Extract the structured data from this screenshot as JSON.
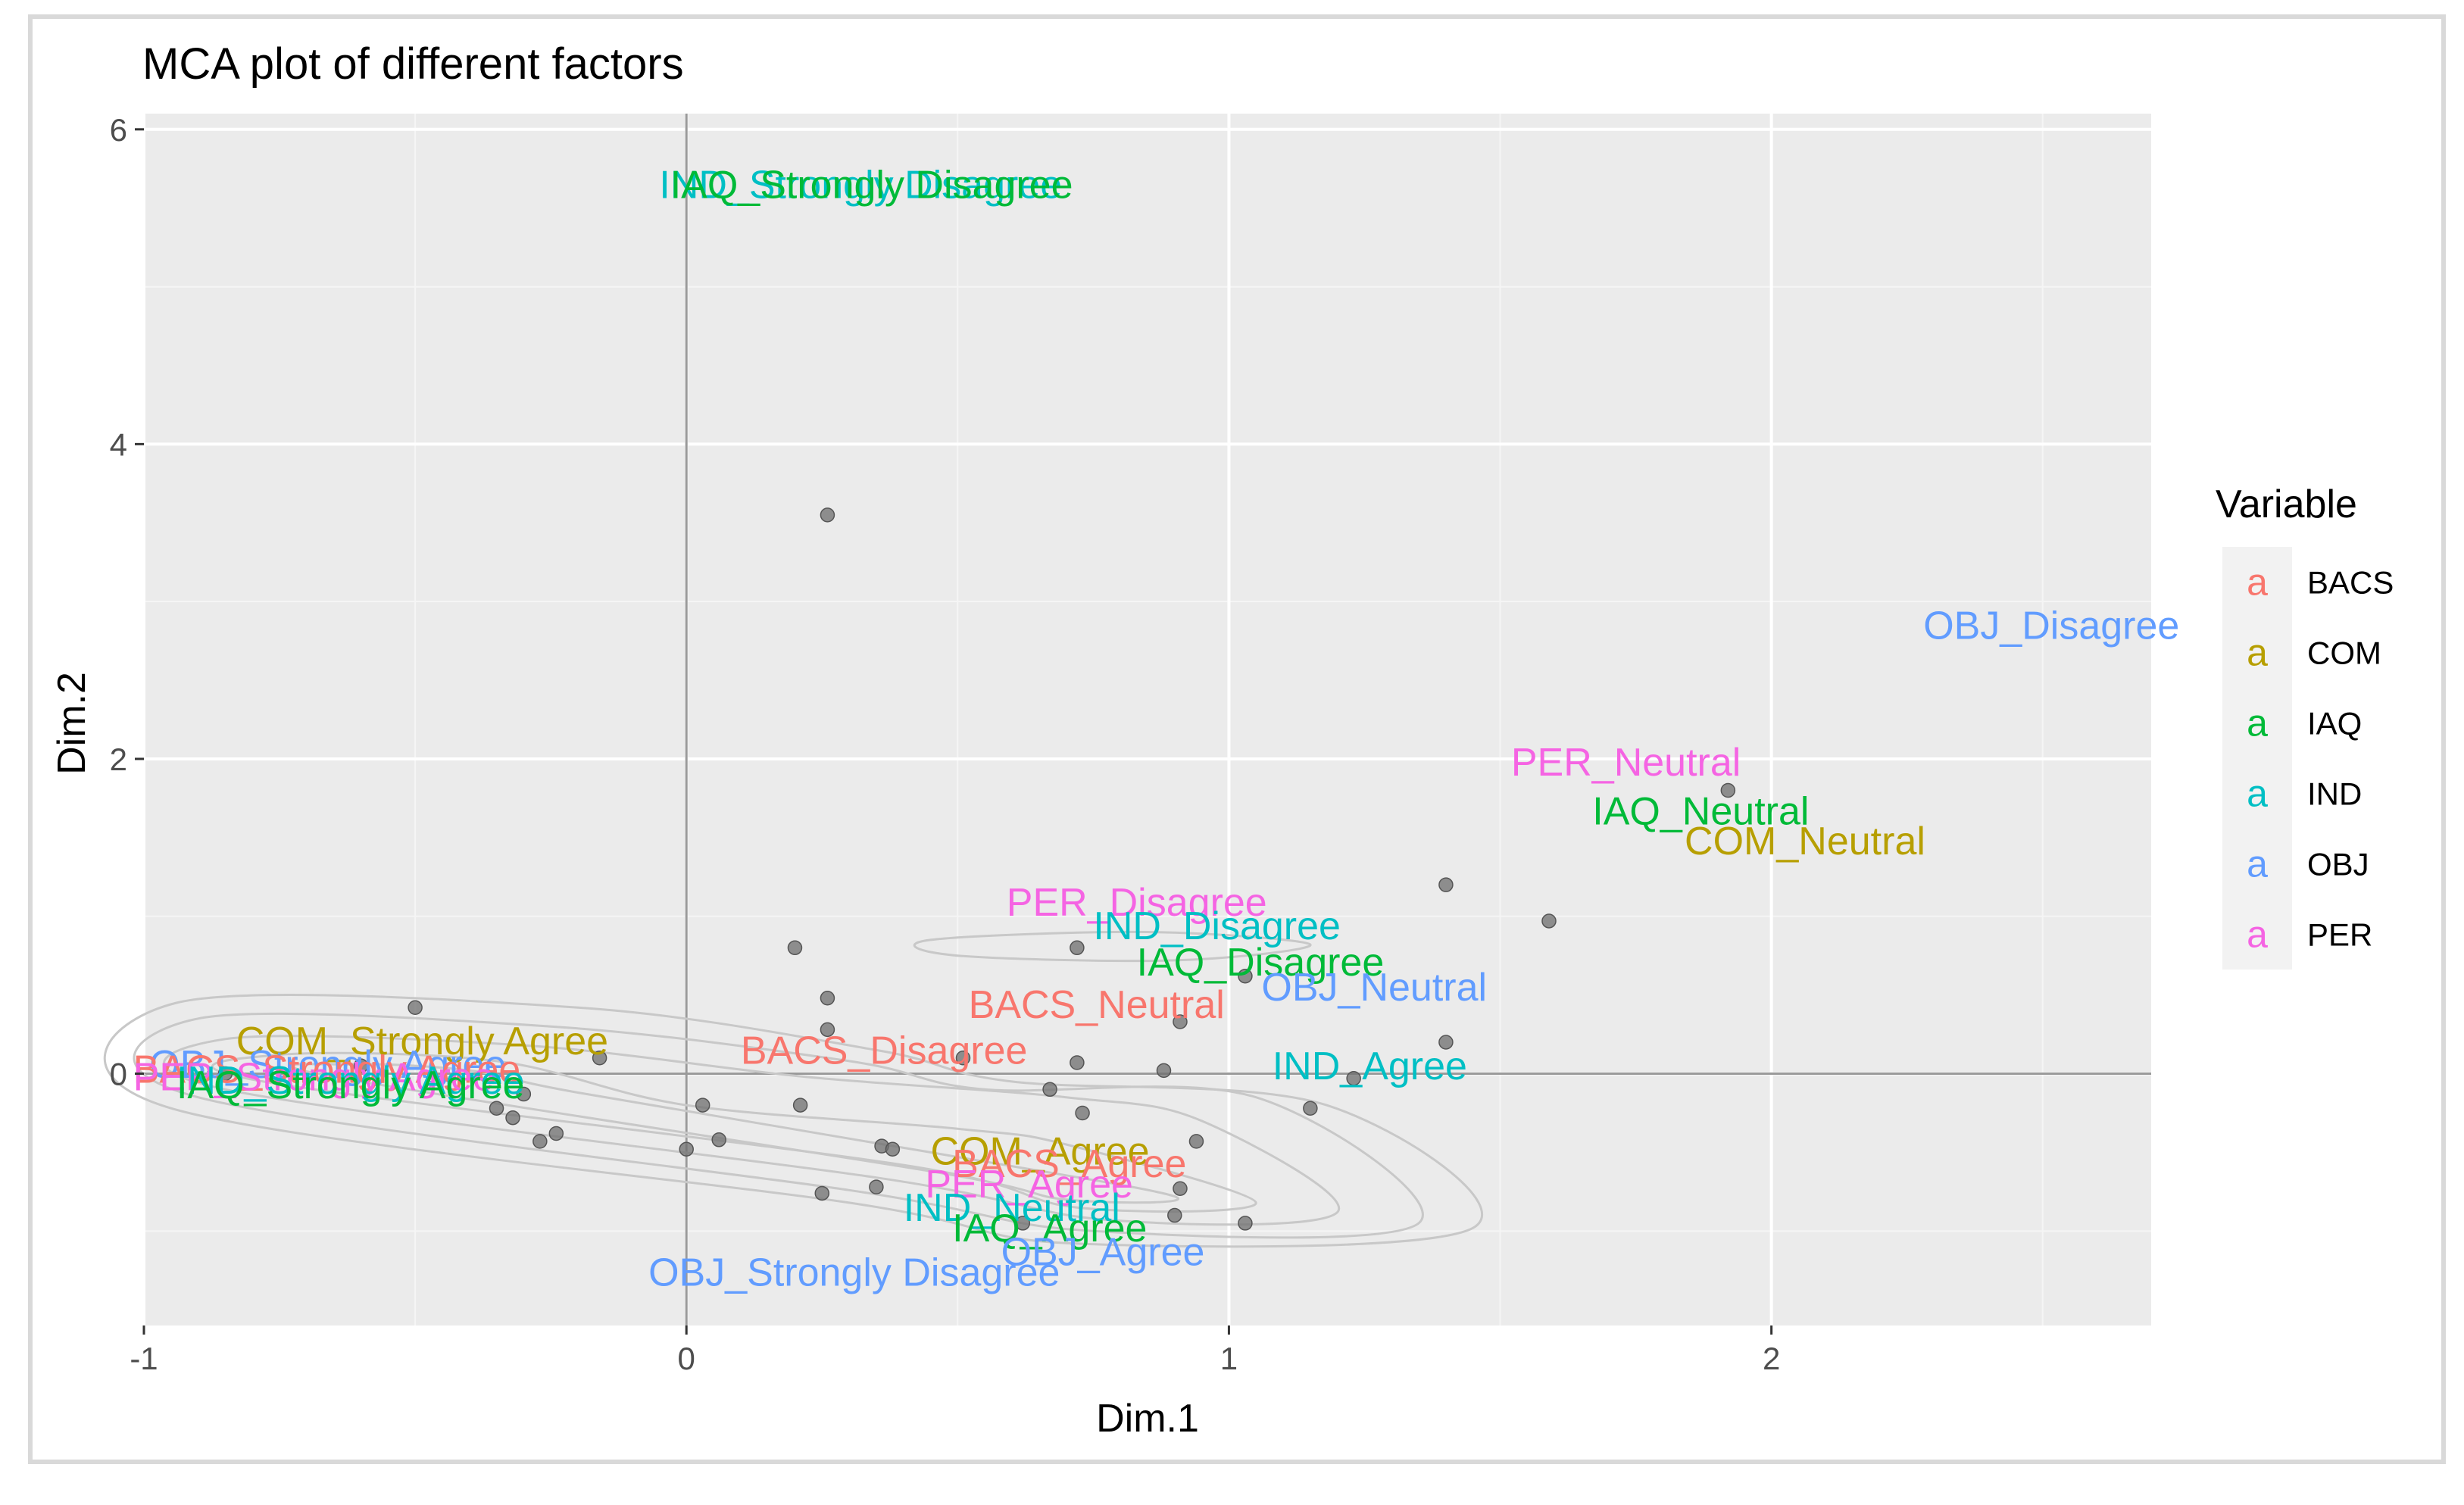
{
  "chart_data": {
    "type": "scatter",
    "title": "MCA plot of different factors",
    "xlabel": "Dim.1",
    "ylabel": "Dim.2",
    "xlim": [
      -1.0,
      2.7
    ],
    "ylim": [
      -1.6,
      6.1
    ],
    "x_ticks": [
      -1,
      0,
      1,
      2
    ],
    "y_ticks": [
      0,
      2,
      4,
      6
    ],
    "grid": true,
    "legend": {
      "title": "Variable",
      "position": "right",
      "glyph": "a",
      "entries": [
        "BACS",
        "COM",
        "IAQ",
        "IND",
        "OBJ",
        "PER"
      ]
    },
    "colors": {
      "BACS": "#F8766D",
      "COM": "#B79F00",
      "IAQ": "#00BA38",
      "IND": "#00BFC4",
      "OBJ": "#619CFF",
      "PER": "#F564E3"
    },
    "category_labels": [
      {
        "text": "IND_Strongly Disagree",
        "group": "IND",
        "x": -0.05,
        "y": 5.65
      },
      {
        "text": "IAQ_Strongly Disagree",
        "group": "IAQ",
        "x": -0.03,
        "y": 5.65
      },
      {
        "text": "OBJ_Disagree",
        "group": "OBJ",
        "x": 2.28,
        "y": 2.85
      },
      {
        "text": "PER_Neutral",
        "group": "PER",
        "x": 1.52,
        "y": 1.98
      },
      {
        "text": "IAQ_Neutral",
        "group": "IAQ",
        "x": 1.67,
        "y": 1.67
      },
      {
        "text": "COM_Neutral",
        "group": "COM",
        "x": 1.84,
        "y": 1.48
      },
      {
        "text": "PER_Disagree",
        "group": "PER",
        "x": 0.59,
        "y": 1.09
      },
      {
        "text": "IND_Disagree",
        "group": "IND",
        "x": 0.75,
        "y": 0.94
      },
      {
        "text": "IAQ_Disagree",
        "group": "IAQ",
        "x": 0.83,
        "y": 0.71
      },
      {
        "text": "OBJ_Neutral",
        "group": "OBJ",
        "x": 1.06,
        "y": 0.55
      },
      {
        "text": "BACS_Neutral",
        "group": "BACS",
        "x": 0.52,
        "y": 0.44
      },
      {
        "text": "BACS_Disagree",
        "group": "BACS",
        "x": 0.1,
        "y": 0.15
      },
      {
        "text": "IND_Agree",
        "group": "IND",
        "x": 1.08,
        "y": 0.05
      },
      {
        "text": "COM_Strongly Agree",
        "group": "COM",
        "x": -0.83,
        "y": 0.21
      },
      {
        "text": "OBJ_Strongly Agree",
        "group": "OBJ",
        "x": -0.99,
        "y": 0.06
      },
      {
        "text": "BACS_Strongly Agree",
        "group": "BACS",
        "x": -1.02,
        "y": 0.03
      },
      {
        "text": "PER_Strongly Agree",
        "group": "PER",
        "x": -1.02,
        "y": -0.02
      },
      {
        "text": "IND_Strongly Agree",
        "group": "IND",
        "x": -0.94,
        "y": -0.04
      },
      {
        "text": "IAQ_Strongly Agree",
        "group": "IAQ",
        "x": -0.94,
        "y": -0.07
      },
      {
        "text": "COM_Agree",
        "group": "COM",
        "x": 0.45,
        "y": -0.49
      },
      {
        "text": "BACS_Agree",
        "group": "BACS",
        "x": 0.49,
        "y": -0.57
      },
      {
        "text": "PER_Agree",
        "group": "PER",
        "x": 0.44,
        "y": -0.7
      },
      {
        "text": "IND_Neutral",
        "group": "IND",
        "x": 0.4,
        "y": -0.85
      },
      {
        "text": "IAQ_Agree",
        "group": "IAQ",
        "x": 0.49,
        "y": -0.98
      },
      {
        "text": "OBJ_Agree",
        "group": "OBJ",
        "x": 0.58,
        "y": -1.13
      },
      {
        "text": "OBJ_Strongly Disagree",
        "group": "OBJ",
        "x": -0.07,
        "y": -1.26
      }
    ],
    "individuals": [
      {
        "x": 0.26,
        "y": 3.55
      },
      {
        "x": 1.4,
        "y": 1.2
      },
      {
        "x": 1.59,
        "y": 0.97
      },
      {
        "x": 1.92,
        "y": 1.8
      },
      {
        "x": 0.2,
        "y": 0.8
      },
      {
        "x": 0.72,
        "y": 0.8
      },
      {
        "x": 1.03,
        "y": 0.62
      },
      {
        "x": 0.26,
        "y": 0.48
      },
      {
        "x": 0.26,
        "y": 0.28
      },
      {
        "x": 0.91,
        "y": 0.33
      },
      {
        "x": 0.51,
        "y": 0.1
      },
      {
        "x": 0.72,
        "y": 0.07
      },
      {
        "x": 0.88,
        "y": 0.02
      },
      {
        "x": 1.4,
        "y": 0.2
      },
      {
        "x": 1.23,
        "y": -0.03
      },
      {
        "x": 0.67,
        "y": -0.1
      },
      {
        "x": 0.73,
        "y": -0.25
      },
      {
        "x": 1.15,
        "y": -0.22
      },
      {
        "x": 0.03,
        "y": -0.2
      },
      {
        "x": 0.21,
        "y": -0.2
      },
      {
        "x": 0.06,
        "y": -0.42
      },
      {
        "x": 0.0,
        "y": -0.48
      },
      {
        "x": 0.36,
        "y": -0.46
      },
      {
        "x": 0.38,
        "y": -0.48
      },
      {
        "x": 0.94,
        "y": -0.43
      },
      {
        "x": 0.25,
        "y": -0.76
      },
      {
        "x": 0.35,
        "y": -0.72
      },
      {
        "x": 0.91,
        "y": -0.73
      },
      {
        "x": 0.9,
        "y": -0.9
      },
      {
        "x": 1.03,
        "y": -0.95
      },
      {
        "x": 0.62,
        "y": -0.95
      },
      {
        "x": -0.5,
        "y": 0.42
      },
      {
        "x": -0.16,
        "y": 0.1
      },
      {
        "x": -0.3,
        "y": -0.13
      },
      {
        "x": -0.32,
        "y": -0.28
      },
      {
        "x": -0.24,
        "y": -0.38
      },
      {
        "x": -0.27,
        "y": -0.43
      },
      {
        "x": -0.35,
        "y": -0.22
      },
      {
        "x": -0.6,
        "y": 0.05
      },
      {
        "x": -0.85,
        "y": 0.0
      }
    ],
    "density_contours": [
      [
        [
          -0.94,
          0.45
        ],
        [
          -0.2,
          0.42
        ],
        [
          0.35,
          0.15
        ],
        [
          0.6,
          -0.05
        ],
        [
          1.18,
          -0.2
        ],
        [
          1.45,
          -0.98
        ],
        [
          0.72,
          -1.08
        ],
        [
          0.3,
          -0.82
        ],
        [
          -0.95,
          -0.22
        ]
      ],
      [
        [
          -0.9,
          0.35
        ],
        [
          -0.25,
          0.3
        ],
        [
          0.3,
          0.08
        ],
        [
          0.55,
          -0.1
        ],
        [
          1.05,
          -0.15
        ],
        [
          1.35,
          -0.95
        ],
        [
          0.75,
          -1.0
        ],
        [
          0.3,
          -0.74
        ],
        [
          -0.9,
          -0.15
        ]
      ],
      [
        [
          -0.85,
          0.22
        ],
        [
          -0.3,
          0.18
        ],
        [
          0.22,
          -0.02
        ],
        [
          0.7,
          -0.15
        ],
        [
          0.95,
          -0.3
        ],
        [
          1.2,
          -0.88
        ],
        [
          0.78,
          -0.93
        ],
        [
          0.35,
          -0.66
        ],
        [
          -0.85,
          -0.1
        ]
      ],
      [
        [
          -0.75,
          0.12
        ],
        [
          -0.35,
          0.08
        ],
        [
          0.0,
          -0.2
        ],
        [
          0.5,
          -0.35
        ],
        [
          0.7,
          -0.45
        ],
        [
          1.05,
          -0.82
        ],
        [
          0.72,
          -0.85
        ],
        [
          0.4,
          -0.58
        ],
        [
          -0.78,
          -0.05
        ]
      ],
      [
        [
          -0.62,
          0.06
        ],
        [
          -0.4,
          0.02
        ],
        [
          -0.2,
          -0.12
        ],
        [
          0.45,
          -0.5
        ],
        [
          0.9,
          -0.78
        ],
        [
          0.7,
          -0.8
        ],
        [
          0.45,
          -0.62
        ],
        [
          -0.65,
          -0.02
        ]
      ],
      [
        [
          0.45,
          0.85
        ],
        [
          0.85,
          0.9
        ],
        [
          1.15,
          0.82
        ],
        [
          0.9,
          0.72
        ],
        [
          0.5,
          0.75
        ]
      ]
    ]
  }
}
